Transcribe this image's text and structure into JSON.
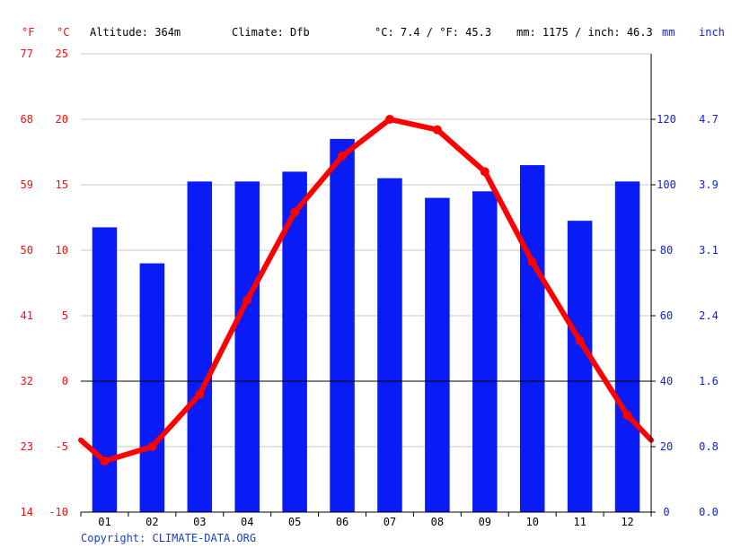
{
  "header": {
    "unit_f": "°F",
    "unit_c": "°C",
    "altitude": "Altitude: 364m",
    "climate": "Climate: Dfb",
    "temp_avg": "°C: 7.4 / °F: 45.3",
    "precip_total": "mm: 1175 / inch: 46.3",
    "unit_mm": "mm",
    "unit_inch": "inch"
  },
  "axes": {
    "left_f_ticks": [
      "14",
      "23",
      "32",
      "41",
      "50",
      "59",
      "68",
      "77"
    ],
    "left_c_ticks": [
      "-10",
      "-5",
      "0",
      "5",
      "10",
      "15",
      "20",
      "25"
    ],
    "right_mm_ticks": [
      "0",
      "20",
      "40",
      "60",
      "80",
      "100",
      "120"
    ],
    "right_inch_ticks": [
      "0.0",
      "0.8",
      "1.6",
      "2.4",
      "3.1",
      "3.9",
      "4.7"
    ]
  },
  "copyright": "Copyright: CLIMATE-DATA.ORG",
  "colors": {
    "bars": "#0a1cf5",
    "line": "#ff0000",
    "grid": "#c8c8c8",
    "red_text": "#ee1111",
    "blue_text": "#1122dd"
  },
  "chart_data": {
    "type": "bar+line",
    "categories": [
      "01",
      "02",
      "03",
      "04",
      "05",
      "06",
      "07",
      "08",
      "09",
      "10",
      "11",
      "12"
    ],
    "series": [
      {
        "type": "bar",
        "axis": "right-mm",
        "values": [
          87,
          76,
          101,
          101,
          104,
          114,
          102,
          96,
          98,
          106,
          89,
          101
        ]
      },
      {
        "type": "line",
        "axis": "left-celsius",
        "values": [
          -6.1,
          -5.0,
          -1.0,
          6.2,
          12.9,
          17.2,
          20.0,
          19.2,
          16.0,
          9.1,
          3.1,
          -2.6
        ]
      }
    ],
    "line_edge_values": {
      "start": -4.5,
      "end": -4.5
    },
    "ylim_celsius": [
      -10,
      25
    ],
    "ylim_mm": [
      0,
      140
    ],
    "grid": true
  }
}
